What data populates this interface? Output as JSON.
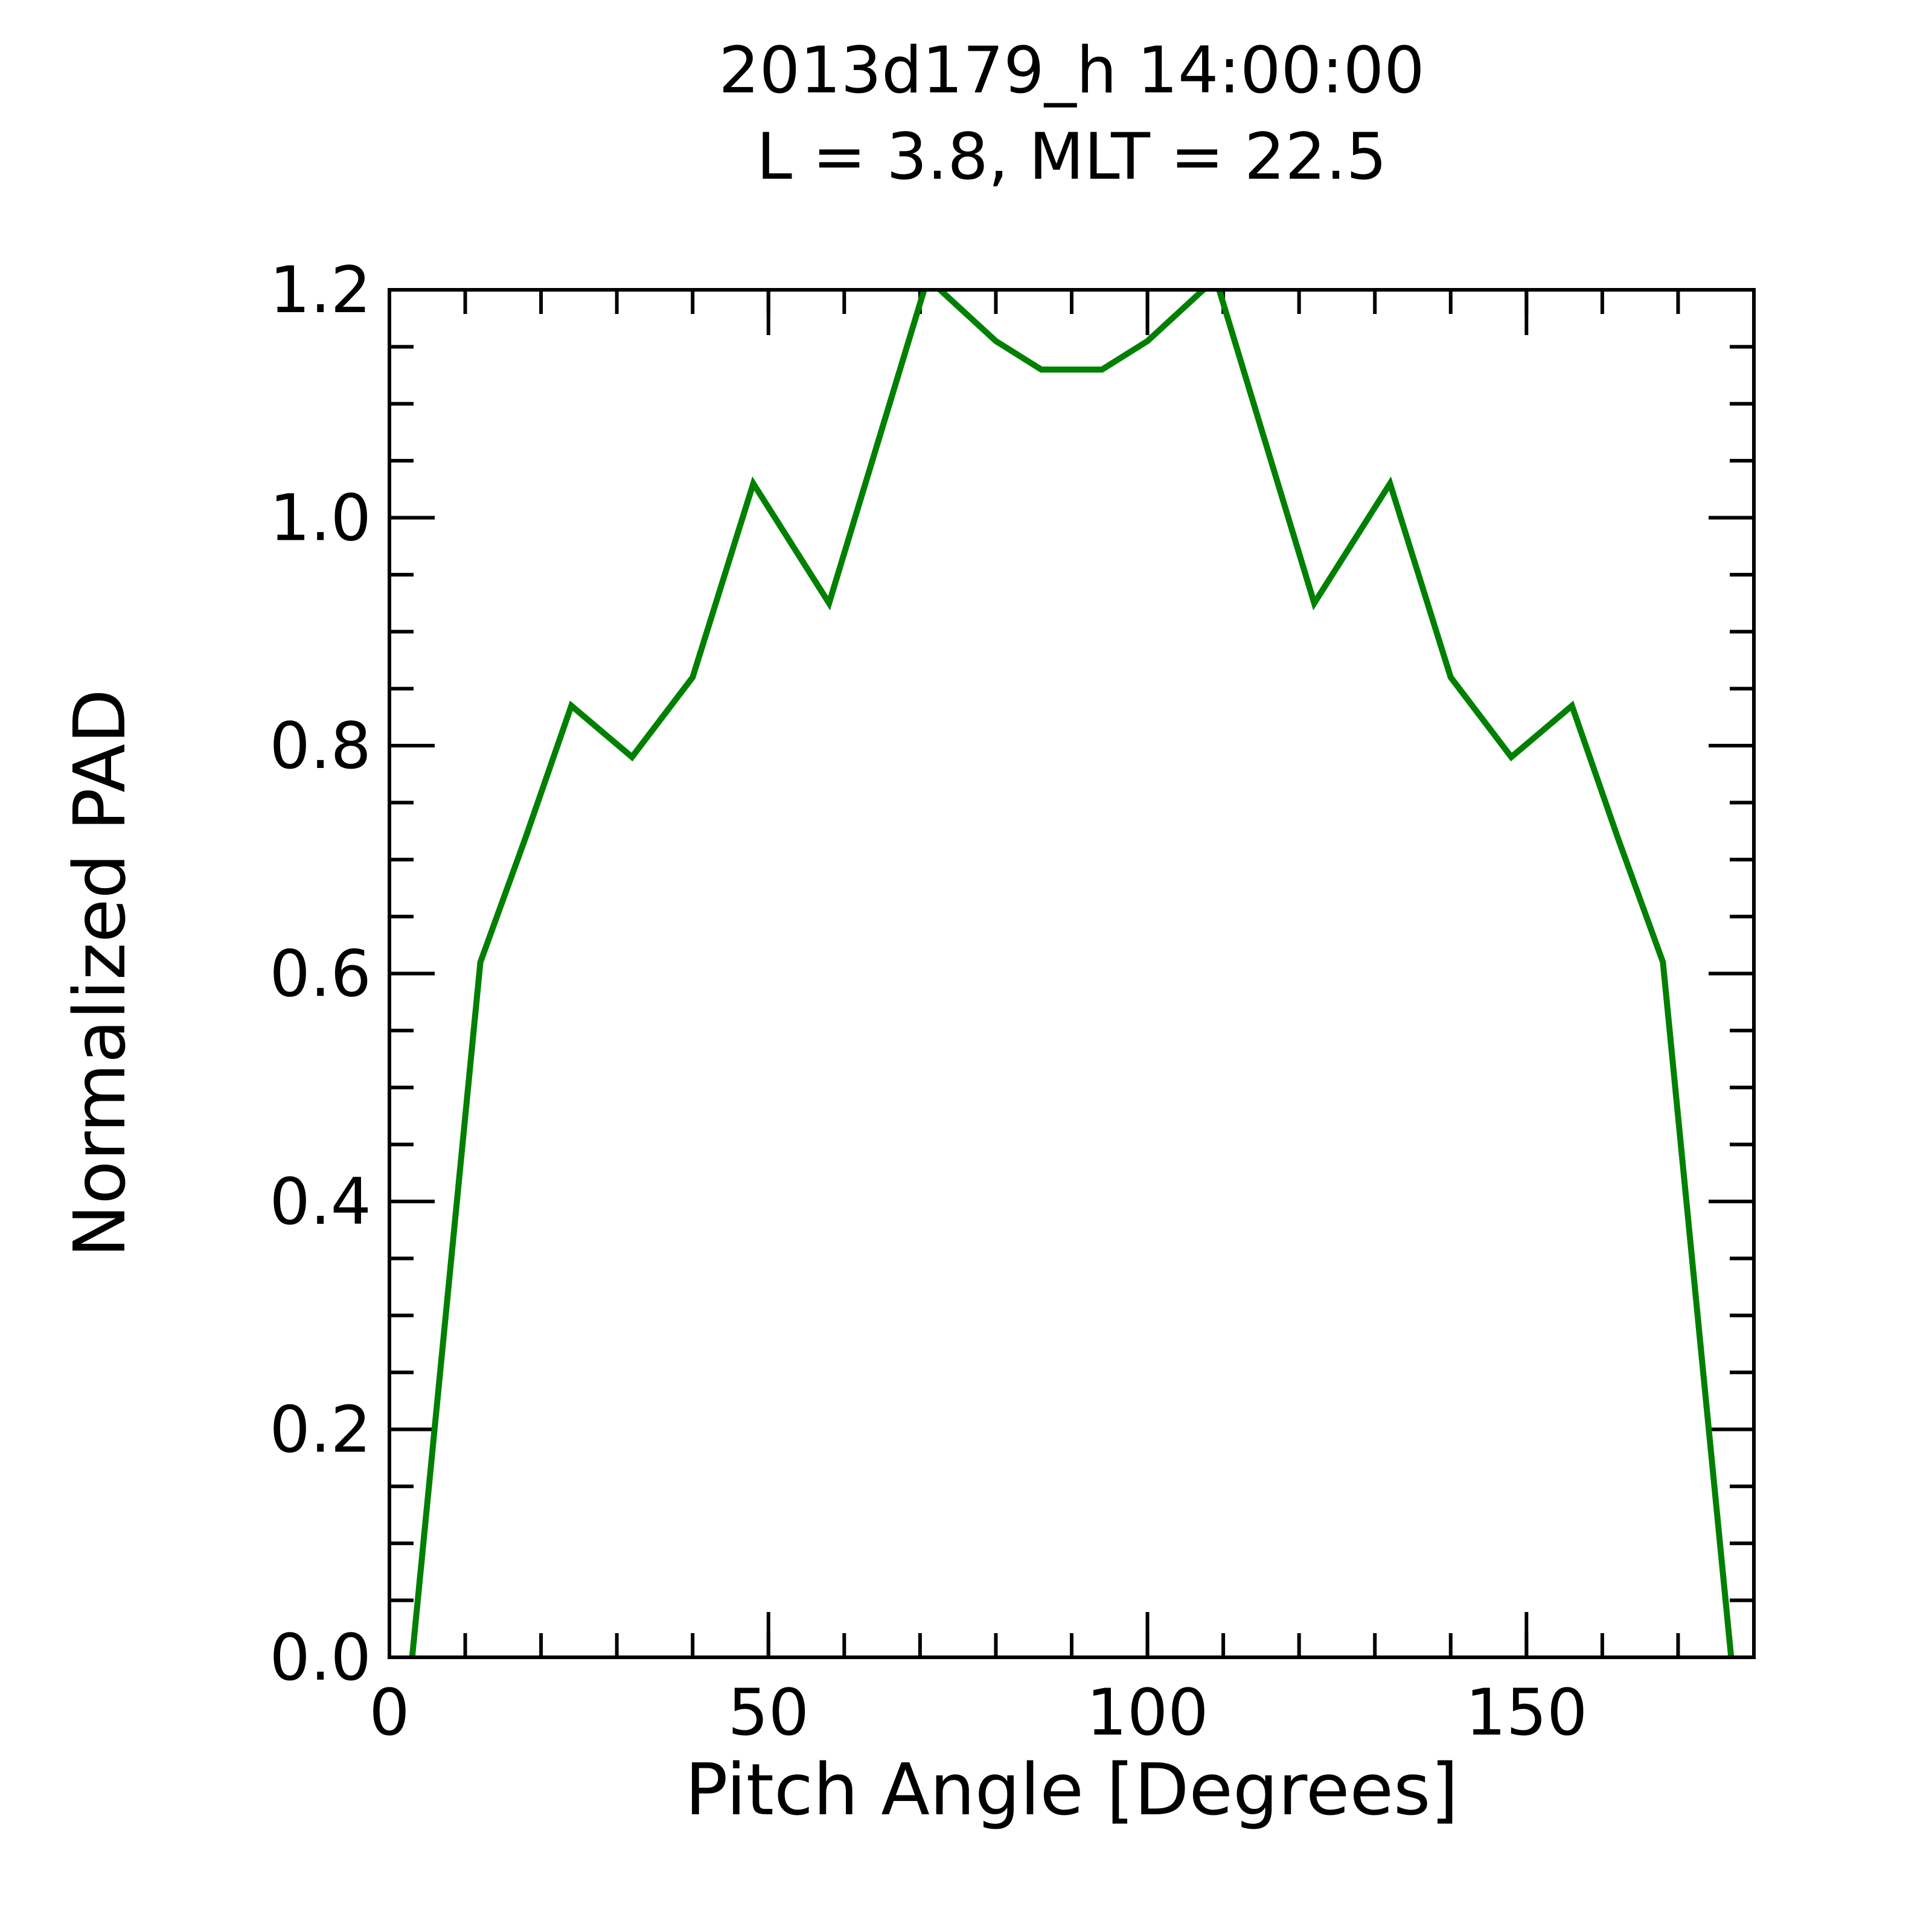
{
  "chart_data": {
    "type": "line",
    "title": "2013d179_h  14:00:00",
    "subtitle": "L = 3.8, MLT = 22.5",
    "xlabel": "Pitch Angle [Degrees]",
    "ylabel": "Normalized PAD",
    "xlim": [
      0,
      180
    ],
    "ylim": [
      0.0,
      1.2
    ],
    "x_major_ticks": [
      0,
      50,
      100,
      150
    ],
    "x_tick_labels": [
      "0",
      "50",
      "100",
      "150"
    ],
    "x_minor_step": 10,
    "y_major_ticks": [
      0.0,
      0.2,
      0.4,
      0.6,
      0.8,
      1.0,
      1.2
    ],
    "y_tick_labels": [
      "0.0",
      "0.2",
      "0.4",
      "0.6",
      "0.8",
      "1.0",
      "1.2"
    ],
    "y_minor_step": 0.05,
    "grid": "off",
    "legend": "none",
    "line_color": "#008000",
    "series": [
      {
        "name": "Normalized PAD",
        "x": [
          3,
          12,
          18,
          24,
          32,
          40,
          48,
          58,
          71,
          80,
          86,
          94,
          100,
          109,
          122,
          132,
          140,
          148,
          156,
          162,
          168,
          177
        ],
        "y": [
          0.0,
          0.61,
          0.72,
          0.835,
          0.79,
          0.86,
          1.03,
          0.925,
          1.21,
          1.155,
          1.13,
          1.13,
          1.155,
          1.21,
          0.925,
          1.03,
          0.86,
          0.79,
          0.835,
          0.72,
          0.61,
          0.0
        ]
      }
    ]
  }
}
